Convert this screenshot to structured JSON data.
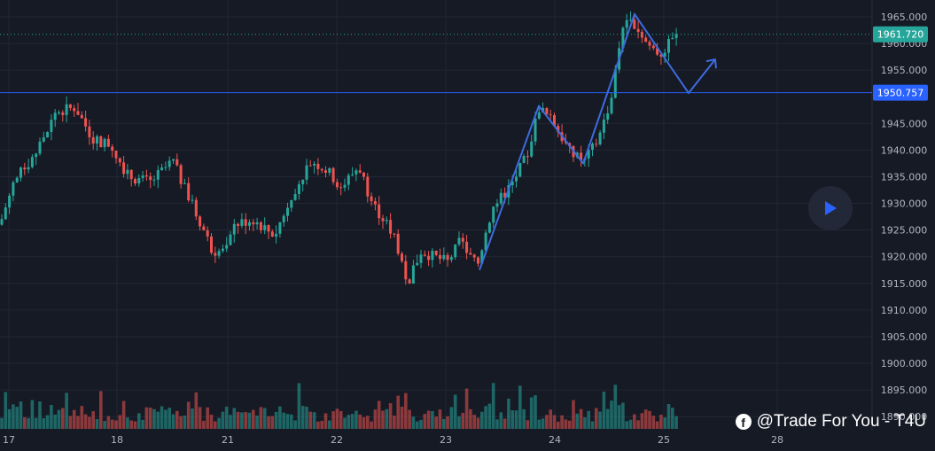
{
  "chart_data": {
    "type": "candlestick",
    "x_tick_labels": [
      "17",
      "18",
      "21",
      "22",
      "23",
      "24",
      "25",
      "28"
    ],
    "y_tick_labels": [
      "1965.000",
      "1960.000",
      "1955.000",
      "1945.000",
      "1940.000",
      "1935.000",
      "1930.000",
      "1925.000",
      "1920.000",
      "1915.000",
      "1910.000",
      "1905.000",
      "1900.000",
      "1895.000",
      "1890.000"
    ],
    "ylim": [
      1888,
      1967
    ],
    "current_price": "1961.720",
    "horizontal_level": "1950.757",
    "colors": {
      "up": "#26a69a",
      "down": "#ef5350",
      "line": "#2962ff",
      "path": "#3d6be0"
    },
    "projection_path_prices": [
      1917.5,
      1948.3,
      1937.5,
      1965.5,
      1950.7,
      1957.0
    ],
    "projection_path_dates": [
      "Apr 23",
      "Apr 23",
      "Apr 24",
      "Apr 24",
      "Apr 25",
      "Apr 25"
    ],
    "volume_visible": true
  },
  "watermark": {
    "text": "@Trade For You - T4U",
    "icon": "facebook-icon"
  },
  "play_button": {
    "icon": "play-icon"
  }
}
